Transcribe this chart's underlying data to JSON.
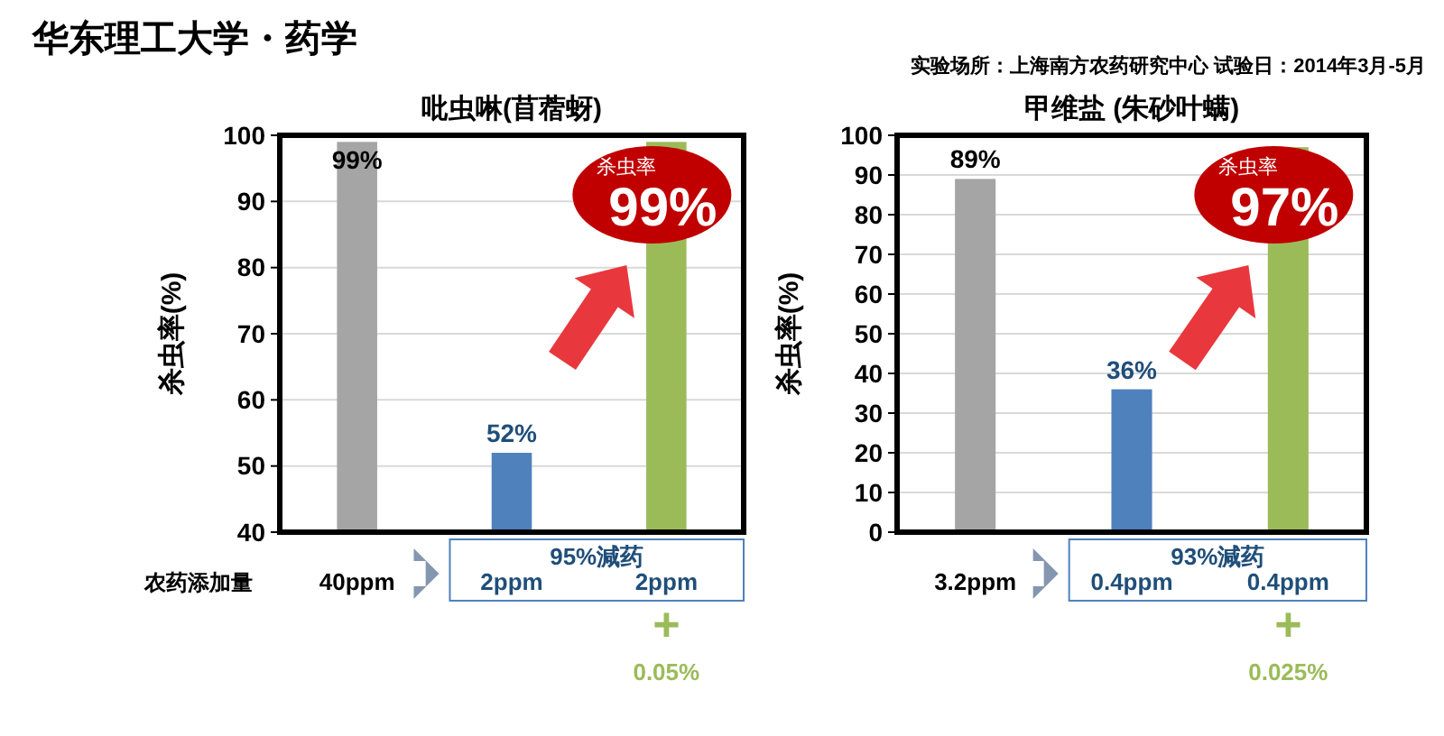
{
  "chart_data": [
    {
      "type": "other",
      "title": "华东理工大学・药学",
      "subtitle": "实验场所：上海南方农药研究中心  试验日：2014年3月-5月"
    },
    {
      "type": "bar",
      "title": "吡虫啉(苜蓿蚜)",
      "ylabel": "杀虫率(%)",
      "xlabel": "农药添加量",
      "categories": [
        "40ppm",
        "2ppm",
        "2ppm"
      ],
      "values": [
        99,
        52,
        99
      ],
      "colors": [
        "#a5a5a5",
        "#4f81bd",
        "#9bbb59"
      ],
      "value_labels": [
        "99%",
        "52%",
        "99%"
      ],
      "ylim": [
        40,
        100
      ],
      "yticks": [
        40,
        50,
        60,
        70,
        80,
        90,
        100
      ],
      "grid": "y",
      "annotations": [
        "95%減药",
        "+",
        "0.05%",
        "杀虫率"
      ]
    },
    {
      "type": "bar",
      "title": "甲维盐 (朱砂叶螨)",
      "ylabel": "杀虫率(%)",
      "categories": [
        "3.2ppm",
        "0.4ppm",
        "0.4ppm"
      ],
      "values": [
        89,
        36,
        97
      ],
      "colors": [
        "#a5a5a5",
        "#4f81bd",
        "#9bbb59"
      ],
      "value_labels": [
        "89%",
        "36%",
        "97%"
      ],
      "ylim": [
        0,
        100
      ],
      "yticks": [
        0,
        10,
        20,
        30,
        40,
        50,
        60,
        70,
        80,
        90,
        100
      ],
      "grid": "y",
      "annotations": [
        "93%減药",
        "+",
        "0.025%",
        "杀虫率"
      ]
    }
  ]
}
